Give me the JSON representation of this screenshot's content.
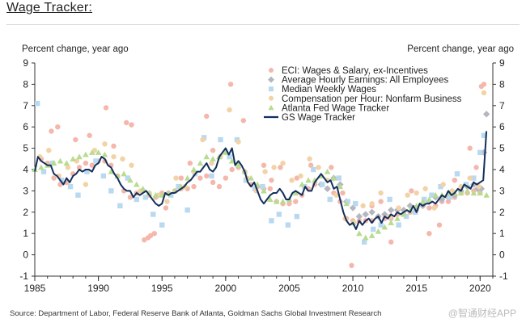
{
  "header": {
    "title": "Wage Tracker:"
  },
  "footer": {
    "source": "Source: Department of Labor, Federal Reserve Bank of Atlanta, Goldman Sachs Global Investment Research",
    "watermark": "@智通财经APP"
  },
  "colors": {
    "eci": "#f5b7ab",
    "ahe": "#b5b7c0",
    "median": "#b9d9f1",
    "compensation": "#f2d3a6",
    "atlanta": "#b8dc8f",
    "gs": "#142f5c",
    "axis": "#333333"
  },
  "chart_data": {
    "type": "line",
    "title": "Wage Tracker:",
    "ylabel_left": "Percent change, year ago",
    "ylabel_right": "Percent change, year ago",
    "xlabel": "",
    "xlim": [
      1985,
      2021
    ],
    "ylim": [
      -1,
      9
    ],
    "x_ticks": [
      1985,
      1990,
      1995,
      2000,
      2005,
      2010,
      2015,
      2020
    ],
    "y_ticks": [
      -1,
      0,
      1,
      2,
      3,
      4,
      5,
      6,
      7,
      8,
      9
    ],
    "legend_position": "top-right",
    "legend": [
      {
        "key": "eci",
        "label": "ECI: Wages & Salary, ex-Incentives",
        "marker": "circle"
      },
      {
        "key": "ahe",
        "label": "Average Hourly Earnings: All Employees",
        "marker": "diamond"
      },
      {
        "key": "median",
        "label": "Median Weekly Wages",
        "marker": "square"
      },
      {
        "key": "compensation",
        "label": "Compensation per Hour: Nonfarm Business",
        "marker": "circle"
      },
      {
        "key": "atlanta",
        "label": "Atlanta Fed Wage Tracker",
        "marker": "triangle"
      },
      {
        "key": "gs",
        "label": "GS Wage Tracker",
        "marker": "line"
      }
    ],
    "series": [
      {
        "key": "gs",
        "name": "GS Wage Tracker",
        "style": "line",
        "x": [
          1985.0,
          1985.25,
          1985.5,
          1985.75,
          1986.0,
          1986.25,
          1986.5,
          1986.75,
          1987.0,
          1987.25,
          1987.5,
          1987.75,
          1988.0,
          1988.25,
          1988.5,
          1988.75,
          1989.0,
          1989.25,
          1989.5,
          1989.75,
          1990.0,
          1990.25,
          1990.5,
          1990.75,
          1991.0,
          1991.25,
          1991.5,
          1991.75,
          1992.0,
          1992.25,
          1992.5,
          1992.75,
          1993.0,
          1993.25,
          1993.5,
          1993.75,
          1994.0,
          1994.25,
          1994.5,
          1994.75,
          1995.0,
          1995.25,
          1995.5,
          1995.75,
          1996.0,
          1996.25,
          1996.5,
          1996.75,
          1997.0,
          1997.25,
          1997.5,
          1997.75,
          1998.0,
          1998.25,
          1998.5,
          1998.75,
          1999.0,
          1999.25,
          1999.5,
          1999.75,
          2000.0,
          2000.25,
          2000.5,
          2000.75,
          2001.0,
          2001.25,
          2001.5,
          2001.75,
          2002.0,
          2002.25,
          2002.5,
          2002.75,
          2003.0,
          2003.25,
          2003.5,
          2003.75,
          2004.0,
          2004.25,
          2004.5,
          2004.75,
          2005.0,
          2005.25,
          2005.5,
          2005.75,
          2006.0,
          2006.25,
          2006.5,
          2006.75,
          2007.0,
          2007.25,
          2007.5,
          2007.75,
          2008.0,
          2008.25,
          2008.5,
          2008.75,
          2009.0,
          2009.25,
          2009.5,
          2009.75,
          2010.0,
          2010.25,
          2010.5,
          2010.75,
          2011.0,
          2011.25,
          2011.5,
          2011.75,
          2012.0,
          2012.25,
          2012.5,
          2012.75,
          2013.0,
          2013.25,
          2013.5,
          2013.75,
          2014.0,
          2014.25,
          2014.5,
          2014.75,
          2015.0,
          2015.25,
          2015.5,
          2015.75,
          2016.0,
          2016.25,
          2016.5,
          2016.75,
          2017.0,
          2017.25,
          2017.5,
          2017.75,
          2018.0,
          2018.25,
          2018.5,
          2018.75,
          2019.0,
          2019.25,
          2019.5,
          2019.75,
          2020.0,
          2020.25,
          2020.5
        ],
        "y": [
          3.9,
          4.6,
          4.4,
          4.3,
          4.2,
          4.2,
          3.8,
          3.7,
          3.5,
          3.3,
          3.6,
          3.4,
          3.7,
          3.8,
          4.0,
          3.9,
          4.0,
          4.0,
          3.9,
          4.2,
          4.3,
          4.6,
          4.5,
          4.2,
          4.1,
          3.8,
          3.6,
          3.3,
          3.1,
          3.0,
          3.0,
          2.7,
          2.9,
          2.8,
          2.9,
          3.0,
          2.8,
          2.6,
          2.4,
          2.3,
          2.4,
          2.9,
          2.8,
          2.9,
          2.9,
          3.0,
          3.1,
          3.2,
          3.4,
          3.5,
          3.7,
          3.9,
          3.9,
          4.1,
          4.3,
          4.0,
          3.9,
          4.1,
          4.6,
          4.8,
          5.0,
          4.7,
          5.0,
          4.2,
          4.4,
          4.2,
          3.9,
          3.4,
          3.2,
          3.4,
          3.0,
          2.6,
          2.4,
          2.6,
          2.8,
          2.9,
          2.9,
          3.1,
          2.9,
          2.6,
          2.6,
          2.9,
          3.0,
          2.9,
          2.8,
          3.2,
          3.0,
          3.0,
          3.4,
          3.6,
          3.8,
          3.6,
          3.4,
          3.5,
          3.1,
          3.2,
          2.6,
          2.0,
          1.6,
          1.4,
          1.5,
          1.2,
          1.6,
          1.4,
          1.6,
          1.7,
          1.5,
          1.7,
          1.8,
          1.5,
          1.8,
          1.7,
          1.9,
          1.8,
          2.0,
          1.9,
          2.0,
          2.1,
          2.0,
          2.3,
          2.0,
          2.4,
          2.3,
          2.4,
          2.4,
          2.5,
          2.4,
          2.6,
          2.8,
          2.7,
          3.0,
          2.8,
          2.9,
          3.1,
          3.0,
          3.3,
          3.2,
          3.1,
          3.4,
          3.3,
          3.4,
          3.5,
          5.8
        ]
      },
      {
        "key": "eci",
        "name": "ECI: Wages & Salary, ex-Incentives",
        "style": "circle",
        "x": [
          1985.5,
          1986.0,
          1986.5,
          1987.0,
          1987.5,
          1988.0,
          1988.5,
          1989.0,
          1989.5,
          1990.0,
          1990.5,
          1991.0,
          1991.5,
          1992.0,
          1992.5,
          1993.0,
          1993.5,
          1994.0,
          1994.5,
          1995.0,
          1995.5,
          1996.0,
          1996.5,
          1997.0,
          1997.5,
          1998.0,
          1998.5,
          1999.0,
          1999.5,
          2000.0,
          2000.5,
          2001.0,
          2001.5,
          2002.0,
          2002.5,
          2003.0,
          2003.5,
          2004.0,
          2004.5,
          2005.0,
          2005.5,
          2006.0,
          2006.5,
          2007.0,
          2007.5,
          2008.0,
          2008.5,
          2009.0,
          2009.5,
          2010.0,
          2010.5,
          2011.0,
          2011.5,
          2012.0,
          2012.5,
          2013.0,
          2013.5,
          2014.0,
          2014.5,
          2015.0,
          2015.5,
          2016.0,
          2016.5,
          2017.0,
          2017.5,
          2018.0,
          2018.5,
          2019.0,
          2019.5,
          2020.0
        ],
        "y": [
          4.5,
          4.3,
          3.6,
          3.3,
          3.4,
          3.8,
          4.1,
          4.3,
          4.2,
          4.4,
          4.4,
          4.2,
          3.7,
          3.0,
          2.7,
          2.9,
          3.0,
          2.8,
          2.7,
          2.9,
          2.9,
          3.0,
          3.1,
          3.1,
          3.2,
          3.6,
          3.7,
          3.4,
          3.2,
          3.6,
          4.0,
          4.1,
          3.9,
          3.3,
          3.2,
          3.1,
          3.1,
          2.5,
          2.4,
          2.4,
          2.5,
          2.8,
          3.1,
          3.3,
          3.3,
          3.1,
          2.9,
          2.5,
          1.7,
          1.6,
          1.6,
          1.6,
          1.6,
          1.8,
          1.7,
          1.7,
          1.9,
          1.9,
          2.0,
          2.1,
          2.3,
          2.2,
          2.3,
          2.5,
          2.5,
          2.7,
          2.9,
          2.9,
          3.0,
          2.9
        ]
      },
      {
        "key": "eci_scatter",
        "name": "ECI: Wages & Salary, ex-Incentives (outliers)",
        "style": "circle",
        "x": [
          1986.3,
          1986.8,
          1988.2,
          1989.3,
          1990.6,
          1991.2,
          1992.2,
          1992.6,
          1993.6,
          1993.9,
          1994.1,
          1994.4,
          1995.3,
          1996.5,
          1997.2,
          1998.5,
          1999.0,
          2000.4,
          2001.4,
          2003.0,
          2003.6,
          2004.3,
          2005.6,
          2006.7,
          2008.3,
          2009.2,
          2009.9,
          2011.5,
          2012.2,
          2013.0,
          2014.6,
          2016.0,
          2016.8,
          2018.0,
          2019.2,
          2019.7,
          2020.1,
          2020.3
        ],
        "y": [
          5.8,
          6.0,
          5.4,
          5.6,
          6.9,
          5.1,
          6.2,
          6.1,
          0.7,
          0.8,
          0.9,
          1.0,
          2.2,
          3.6,
          4.3,
          6.5,
          4.9,
          8.0,
          6.3,
          4.2,
          3.5,
          4.1,
          3.6,
          4.2,
          4.1,
          2.9,
          -0.5,
          2.3,
          2.5,
          0.6,
          3.0,
          1.0,
          1.4,
          3.5,
          5.0,
          4.1,
          7.9,
          8.0
        ]
      },
      {
        "key": "ahe",
        "name": "Average Hourly Earnings: All Employees",
        "style": "diamond",
        "x": [
          2007.5,
          2008.0,
          2008.5,
          2009.0,
          2009.5,
          2010.0,
          2010.5,
          2011.0,
          2011.5,
          2012.0,
          2012.5,
          2013.0,
          2013.5,
          2014.0,
          2014.5,
          2015.0,
          2015.5,
          2016.0,
          2016.5,
          2017.0,
          2017.5,
          2018.0,
          2018.5,
          2019.0,
          2019.5,
          2019.8,
          2020.1,
          2020.3,
          2020.5
        ],
        "y": [
          3.3,
          3.1,
          3.6,
          3.3,
          2.5,
          2.2,
          1.8,
          1.9,
          2.0,
          1.8,
          1.9,
          2.1,
          2.1,
          2.1,
          2.3,
          2.2,
          2.3,
          2.5,
          2.7,
          2.6,
          2.7,
          2.8,
          3.0,
          3.2,
          3.3,
          3.1,
          3.1,
          4.8,
          6.6
        ]
      },
      {
        "key": "median",
        "name": "Median Weekly Wages",
        "style": "square",
        "x": [
          1985.2,
          1985.7,
          1986.4,
          1987.1,
          1987.8,
          1988.4,
          1989.1,
          1989.8,
          1990.4,
          1991.0,
          1991.7,
          1992.3,
          1993.0,
          1993.7,
          1994.3,
          1995.0,
          1995.7,
          1996.3,
          1997.0,
          1997.6,
          1998.3,
          1998.9,
          1999.6,
          2000.3,
          2000.9,
          2001.6,
          2002.3,
          2002.9,
          2003.6,
          2004.2,
          2004.9,
          2005.6,
          2006.2,
          2006.9,
          2007.6,
          2008.2,
          2008.9,
          2009.6,
          2010.2,
          2010.9,
          2011.6,
          2012.2,
          2012.9,
          2013.6,
          2014.2,
          2014.9,
          2015.6,
          2016.2,
          2016.9,
          2017.6,
          2018.2,
          2018.9,
          2019.5,
          2020.0,
          2020.3
        ],
        "y": [
          7.1,
          3.9,
          4.3,
          3.5,
          3.2,
          2.8,
          3.9,
          4.4,
          3.7,
          3.0,
          2.3,
          3.6,
          2.6,
          2.7,
          1.9,
          1.4,
          2.8,
          3.2,
          2.1,
          3.8,
          5.5,
          3.7,
          5.4,
          4.6,
          5.4,
          3.5,
          3.1,
          3.2,
          1.6,
          1.9,
          1.4,
          1.8,
          3.2,
          4.0,
          3.3,
          2.6,
          3.6,
          2.5,
          2.4,
          0.6,
          1.2,
          1.4,
          2.6,
          1.4,
          1.8,
          2.0,
          2.6,
          2.8,
          3.2,
          2.7,
          3.8,
          3.3,
          3.6,
          4.8,
          5.6
        ]
      },
      {
        "key": "compensation",
        "name": "Compensation per Hour: Nonfarm Business",
        "style": "circle",
        "x": [
          1985.4,
          1986.1,
          1986.9,
          1987.6,
          1988.3,
          1989.0,
          1989.7,
          1990.5,
          1991.2,
          1991.9,
          1992.6,
          1993.3,
          1994.0,
          1994.7,
          1995.4,
          1996.1,
          1996.8,
          1997.5,
          1998.2,
          1998.9,
          1999.6,
          2000.3,
          2001.0,
          2001.7,
          2002.4,
          2003.1,
          2003.8,
          2004.5,
          2005.2,
          2005.9,
          2006.6,
          2007.3,
          2008.0,
          2008.7,
          2009.4,
          2010.1,
          2010.8,
          2011.5,
          2012.2,
          2012.9,
          2013.6,
          2014.3,
          2015.0,
          2015.7,
          2016.4,
          2017.1,
          2017.8,
          2018.5,
          2019.2,
          2019.9,
          2020.3
        ],
        "y": [
          4.6,
          4.9,
          3.7,
          4.1,
          4.4,
          3.3,
          4.9,
          5.2,
          4.6,
          4.5,
          4.2,
          3.0,
          2.9,
          2.8,
          2.5,
          3.6,
          3.2,
          3.9,
          5.4,
          4.3,
          4.6,
          6.8,
          5.3,
          3.6,
          3.0,
          3.9,
          4.1,
          4.3,
          3.5,
          3.7,
          4.5,
          4.1,
          3.5,
          2.8,
          1.7,
          1.5,
          2.3,
          2.4,
          2.9,
          1.8,
          2.2,
          2.8,
          2.9,
          3.1,
          2.2,
          3.3,
          3.0,
          3.2,
          3.6,
          3.2,
          7.6
        ]
      },
      {
        "key": "atlanta",
        "name": "Atlanta Fed Wage Tracker",
        "style": "triangle",
        "x": [
          1985.0,
          1985.5,
          1986.0,
          1986.5,
          1987.0,
          1987.5,
          1988.0,
          1988.5,
          1989.0,
          1989.5,
          1990.0,
          1990.5,
          1991.0,
          1991.5,
          1992.0,
          1992.5,
          1993.0,
          1993.5,
          1994.0,
          1994.5,
          1995.0,
          1995.5,
          1996.0,
          1996.5,
          1997.0,
          1997.5,
          1998.0,
          1998.5,
          1999.0,
          1999.5,
          2000.0,
          2000.5,
          2001.0,
          2001.5,
          2002.0,
          2002.5,
          2003.0,
          2003.5,
          2004.0,
          2004.5,
          2005.0,
          2005.5,
          2006.0,
          2006.5,
          2007.0,
          2007.5,
          2008.0,
          2008.5,
          2009.0,
          2009.5,
          2010.0,
          2010.5,
          2011.0,
          2011.5,
          2012.0,
          2012.5,
          2013.0,
          2013.5,
          2014.0,
          2014.5,
          2015.0,
          2015.5,
          2016.0,
          2016.5,
          2017.0,
          2017.5,
          2018.0,
          2018.5,
          2019.0,
          2019.5,
          2020.0,
          2020.5
        ],
        "y": [
          4.0,
          4.1,
          4.2,
          4.3,
          4.4,
          4.3,
          4.5,
          4.6,
          4.7,
          4.8,
          4.8,
          4.7,
          3.9,
          3.7,
          3.8,
          3.5,
          3.3,
          3.1,
          2.9,
          2.8,
          2.8,
          2.9,
          3.0,
          3.2,
          3.6,
          4.0,
          4.3,
          4.6,
          4.5,
          4.6,
          4.8,
          4.4,
          4.2,
          3.9,
          3.6,
          3.3,
          3.0,
          2.6,
          2.5,
          2.5,
          2.6,
          2.9,
          3.3,
          3.5,
          3.5,
          3.7,
          3.9,
          3.6,
          3.2,
          2.4,
          1.5,
          1.0,
          0.8,
          0.9,
          1.1,
          1.3,
          1.5,
          1.7,
          1.9,
          2.1,
          2.3,
          2.5,
          2.6,
          2.8,
          2.8,
          2.9,
          2.9,
          2.9,
          3.0,
          2.9,
          2.9,
          2.8
        ]
      }
    ]
  }
}
